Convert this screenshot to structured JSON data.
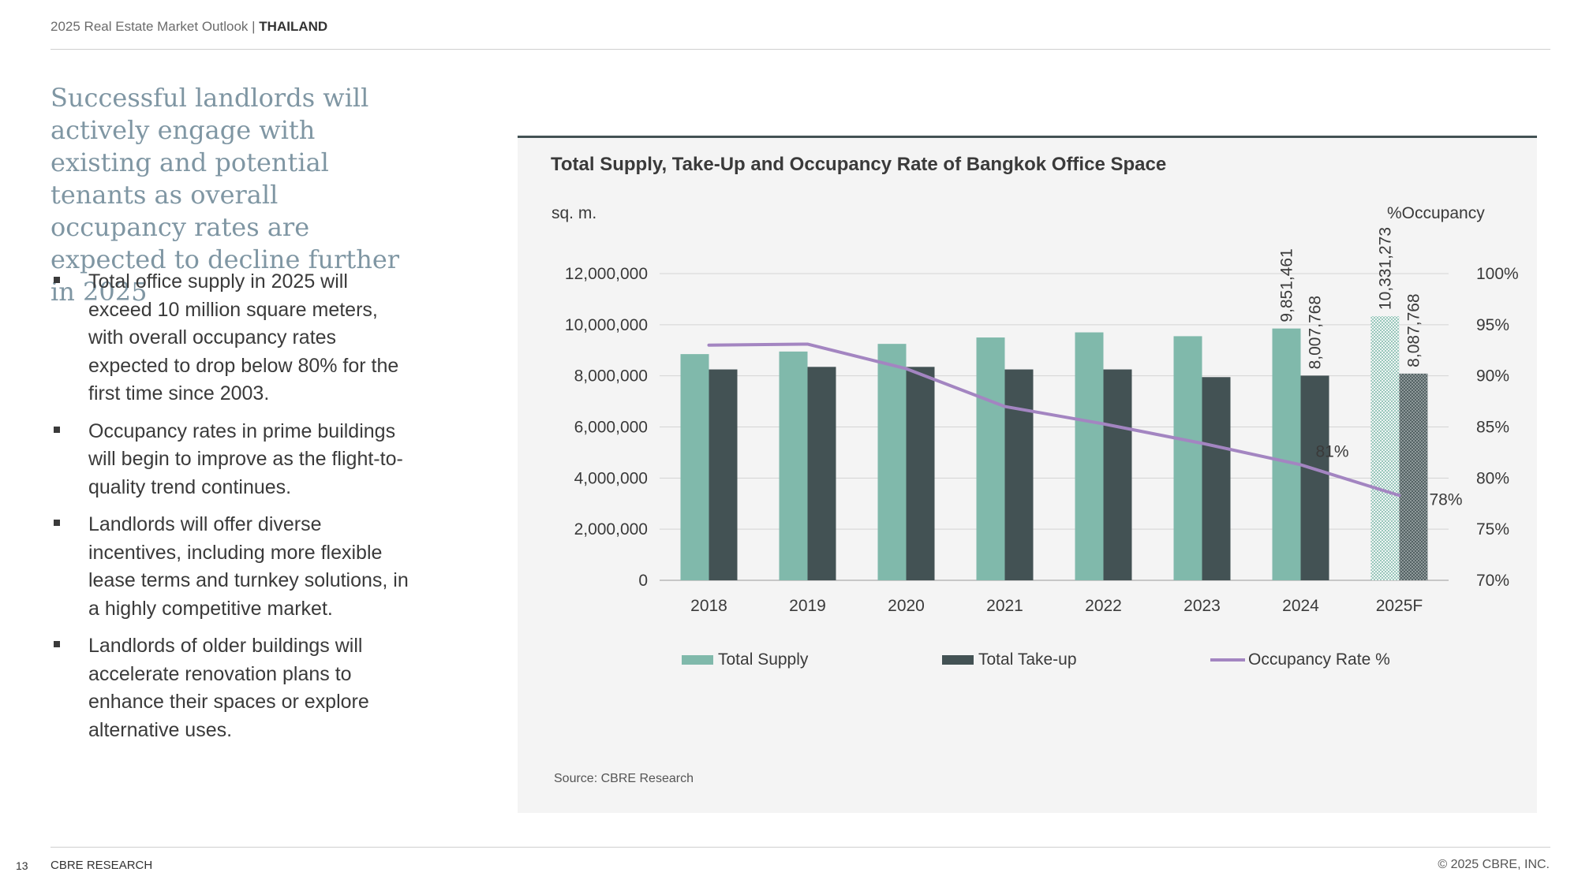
{
  "header": {
    "title": "2025 Real Estate Market Outlook |",
    "country": "THAILAND"
  },
  "headline": "Successful landlords will actively engage with existing and potential tenants as overall occupancy rates are expected to decline further in 2025",
  "bullets": [
    "Total office supply in 2025 will exceed 10 million square meters, with overall occupancy rates expected to drop below 80% for the first time since 2003.",
    "Occupancy rates in prime buildings will begin to improve as the flight-to-quality trend continues.",
    "Landlords will offer diverse incentives, including more flexible lease terms and turnkey solutions, in a highly competitive market.",
    "Landlords of older buildings will accelerate renovation plans to enhance their spaces or explore alternative uses."
  ],
  "chart_data": {
    "type": "bar",
    "title": "Total Supply, Take-Up and Occupancy Rate of Bangkok Office Space",
    "ylabel": "sq. m.",
    "y2label": "%Occupancy",
    "ylim": [
      0,
      12000000
    ],
    "y2lim": [
      70,
      100
    ],
    "yticks": [
      "0",
      "2,000,000",
      "4,000,000",
      "6,000,000",
      "8,000,000",
      "10,000,000",
      "12,000,000"
    ],
    "y2ticks": [
      "70%",
      "75%",
      "80%",
      "85%",
      "90%",
      "95%",
      "100%"
    ],
    "categories": [
      "2018",
      "2019",
      "2020",
      "2021",
      "2022",
      "2023",
      "2024",
      "2025F"
    ],
    "series": [
      {
        "name": "Total Supply",
        "type": "bar",
        "color": "#80b9ab",
        "values": [
          8850000,
          8950000,
          9250000,
          9500000,
          9700000,
          9550000,
          9851461,
          10331273
        ],
        "data_labels": {
          "6": "9,851,461",
          "7": "10,331,273"
        }
      },
      {
        "name": "Total Take-up",
        "type": "bar",
        "color": "#435254",
        "values": [
          8250000,
          8350000,
          8350000,
          8250000,
          8250000,
          7950000,
          8007768,
          8087768
        ],
        "data_labels": {
          "6": "8,007,768",
          "7": "8,087,768"
        }
      },
      {
        "name": "Occupancy Rate %",
        "type": "line",
        "axis": "right",
        "color": "#a385c1",
        "values": [
          93.0,
          93.1,
          90.7,
          87.0,
          85.3,
          83.4,
          81.3,
          78.3
        ],
        "data_labels": {
          "6": "81%",
          "7": "78%"
        }
      }
    ],
    "forecast_category": "2025F",
    "legend_position": "bottom",
    "grid": true,
    "source": "Source: CBRE Research"
  },
  "footer": {
    "page_number": "13",
    "brand": "CBRE RESEARCH",
    "copyright": "© 2025 CBRE, INC."
  }
}
